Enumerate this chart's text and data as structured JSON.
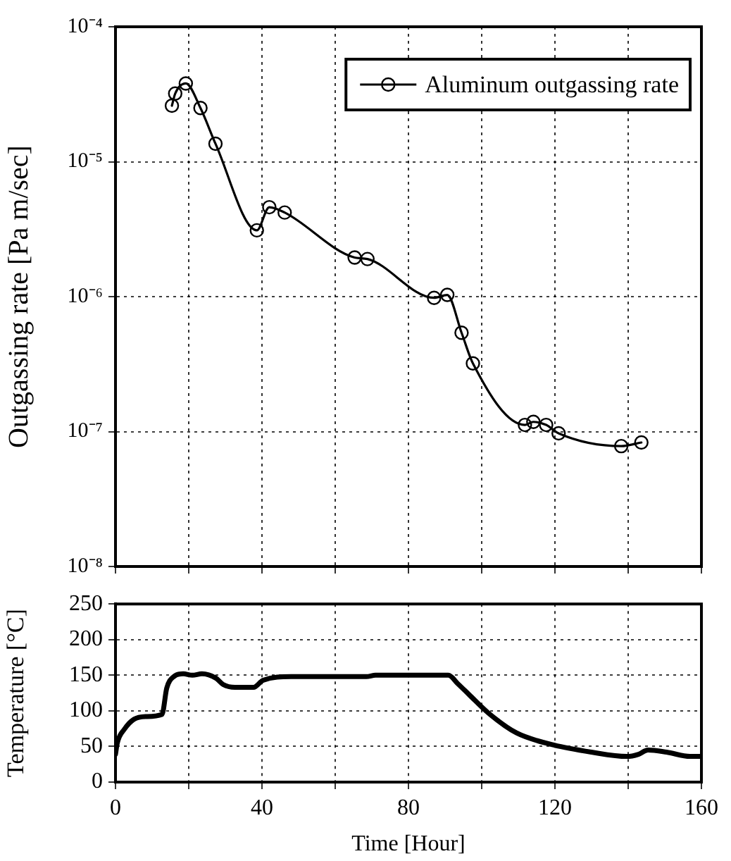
{
  "chart_data": [
    {
      "type": "line",
      "ylabel": "Outgassing rate [Pa m/sec]",
      "log": true,
      "grid": true,
      "legend": "top right",
      "marker": "circle",
      "line_style": "solid",
      "tick_labels": "y",
      "xlim": [
        0,
        160
      ],
      "xticks": [
        0,
        20,
        40,
        60,
        80,
        100,
        120,
        140,
        160
      ],
      "ylim": [
        1e-08,
        0.0001
      ],
      "yticks": [
        {
          "value": 1e-08,
          "label": "10⁻⁸"
        },
        {
          "value": 1e-07,
          "label": "10⁻⁷"
        },
        {
          "value": 1e-06,
          "label": "10⁻⁶"
        },
        {
          "value": 1e-05,
          "label": "10⁻⁵"
        },
        {
          "value": 0.0001,
          "label": "10⁻⁴"
        }
      ],
      "series": [
        {
          "name": "Aluminum outgassing rate",
          "color": "#000000",
          "x": [
            15.4,
            16.3,
            19.2,
            23.2,
            27.3,
            38.6,
            42.0,
            46.2,
            65.3,
            68.8,
            87.0,
            90.6,
            94.5,
            97.6,
            111.8,
            114.1,
            117.6,
            121.0,
            138.1,
            143.6
          ],
          "values": [
            2.6e-05,
            3.2e-05,
            3.8e-05,
            2.5e-05,
            1.36e-05,
            3.1e-06,
            4.6e-06,
            4.2e-06,
            1.95e-06,
            1.9e-06,
            9.8e-07,
            1.03e-06,
            5.4e-07,
            3.2e-07,
            1.12e-07,
            1.18e-07,
            1.12e-07,
            9.7e-08,
            7.8e-08,
            8.3e-08
          ]
        }
      ]
    },
    {
      "type": "line",
      "xlabel": "Time [Hour]",
      "ylabel": "Temperature [°C]",
      "grid": true,
      "marker": "none",
      "line_style": "solid",
      "xlim": [
        0,
        160
      ],
      "xticks": [
        0,
        {
          "value": 20,
          "label": null
        },
        40,
        {
          "value": 60,
          "label": null
        },
        80,
        {
          "value": 100,
          "label": null
        },
        120,
        {
          "value": 140,
          "label": null
        },
        160
      ],
      "ylim": [
        0,
        250
      ],
      "yticks": [
        0,
        50,
        100,
        150,
        200,
        250
      ],
      "series": [
        {
          "color": "#000000",
          "x": [
            0,
            0.5,
            2.4,
            5,
            8.2,
            12.7,
            14,
            15.9,
            18.5,
            21,
            23.6,
            27.4,
            29.4,
            32.6,
            37.7,
            40.3,
            48,
            58,
            68.5,
            71,
            90.9,
            93.5,
            96.7,
            101.8,
            109.5,
            119.7,
            130,
            139.6,
            142.8,
            145.4,
            150.5,
            156.9,
            160
          ],
          "values": [
            39,
            55,
            74,
            88,
            92,
            95,
            132,
            148,
            152,
            150,
            152,
            146,
            137,
            133,
            133,
            143,
            148,
            148,
            148,
            150,
            150,
            138,
            122,
            97,
            69,
            52,
            42,
            36,
            39,
            45,
            42,
            36,
            36
          ]
        }
      ]
    }
  ]
}
